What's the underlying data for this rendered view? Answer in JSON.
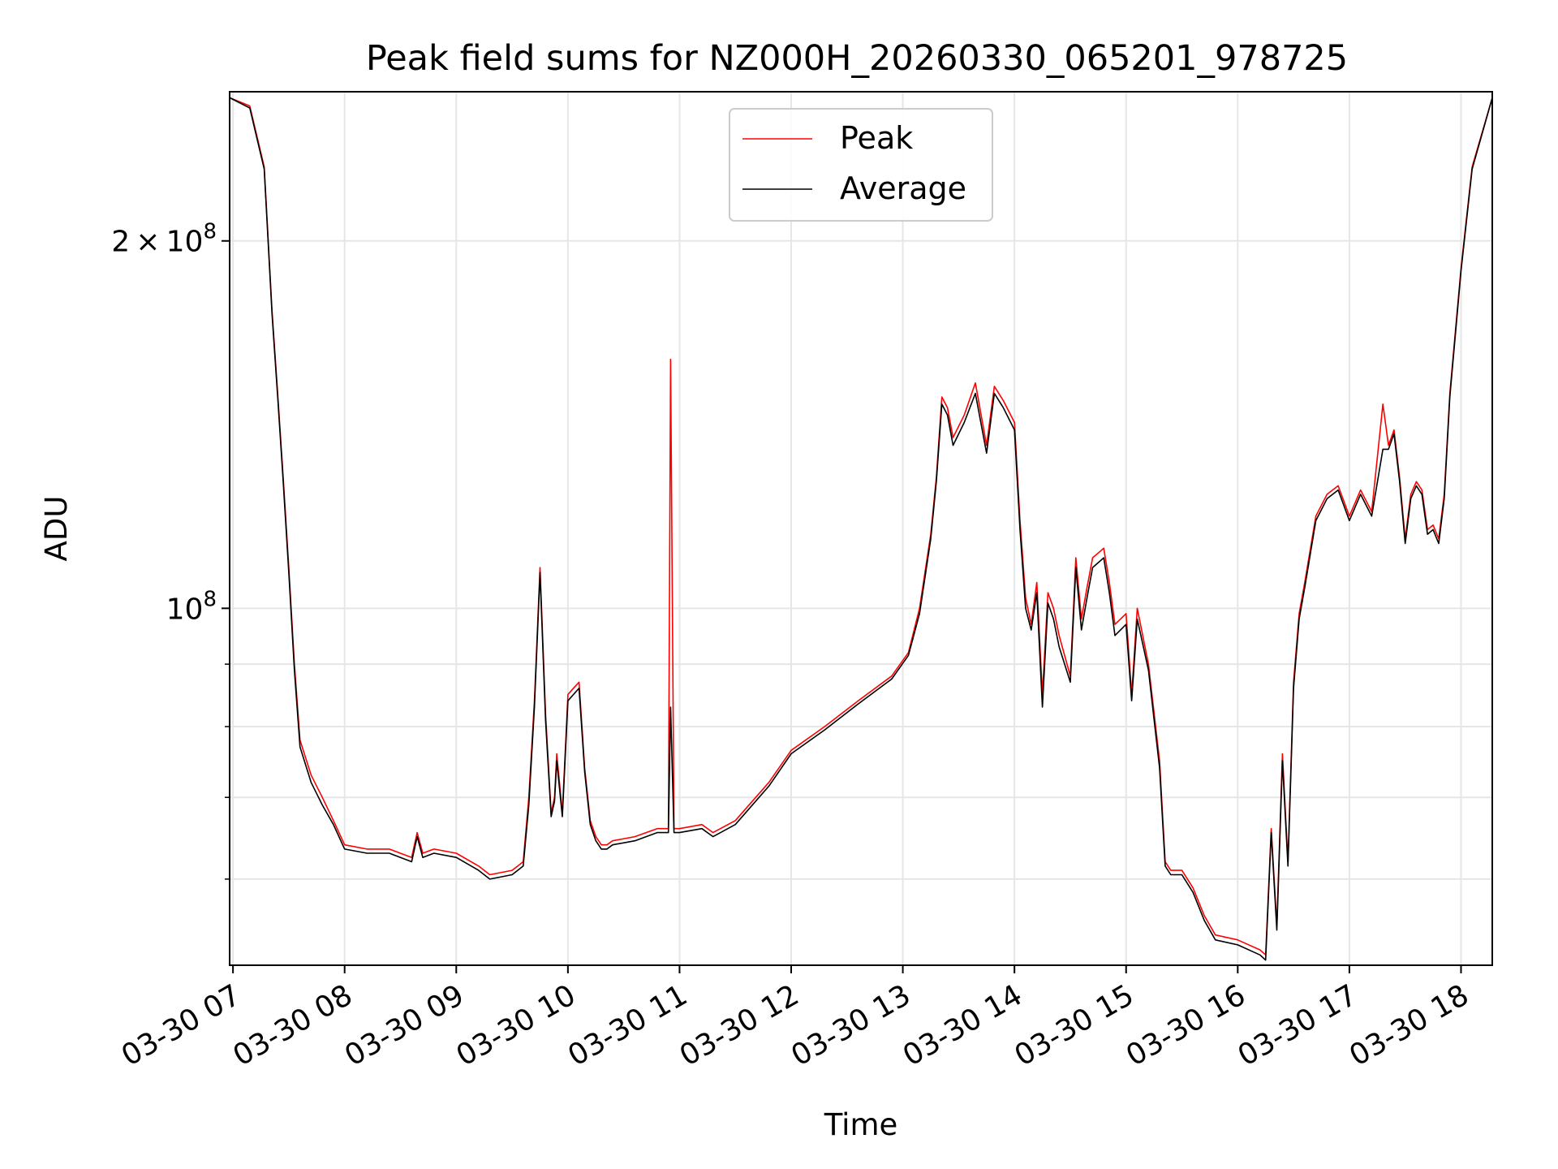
{
  "chart_data": {
    "type": "line",
    "title": "Peak field sums for NZ000H_20260330_065201_978725",
    "xlabel": "Time",
    "ylabel": "ADU",
    "yscale": "log",
    "ylim": [
      51000000,
      265000000
    ],
    "xlim_hours": [
      6.97,
      18.28
    ],
    "grid": true,
    "legend_position": "upper center",
    "x_ticks": [
      {
        "hour": 7,
        "label": "03-30 07"
      },
      {
        "hour": 8,
        "label": "03-30 08"
      },
      {
        "hour": 9,
        "label": "03-30 09"
      },
      {
        "hour": 10,
        "label": "03-30 10"
      },
      {
        "hour": 11,
        "label": "03-30 11"
      },
      {
        "hour": 12,
        "label": "03-30 12"
      },
      {
        "hour": 13,
        "label": "03-30 13"
      },
      {
        "hour": 14,
        "label": "03-30 14"
      },
      {
        "hour": 15,
        "label": "03-30 15"
      },
      {
        "hour": 16,
        "label": "03-30 16"
      },
      {
        "hour": 17,
        "label": "03-30 17"
      },
      {
        "hour": 18,
        "label": "03-30 18"
      }
    ],
    "y_major_ticks": [
      {
        "value": 100000000,
        "mantissa": "",
        "exponent": "8"
      },
      {
        "value": 200000000,
        "mantissa": "2",
        "exponent": "8"
      }
    ],
    "y_minor_ticks": [
      60000000,
      70000000,
      80000000,
      90000000
    ],
    "series": [
      {
        "name": "Peak",
        "color": "#ff0000",
        "x": [
          6.97,
          7.15,
          7.28,
          7.35,
          7.4,
          7.45,
          7.5,
          7.55,
          7.6,
          7.7,
          7.8,
          7.9,
          8.0,
          8.2,
          8.4,
          8.6,
          8.65,
          8.7,
          8.8,
          9.0,
          9.2,
          9.3,
          9.5,
          9.6,
          9.65,
          9.7,
          9.75,
          9.8,
          9.85,
          9.88,
          9.9,
          9.95,
          10.0,
          10.05,
          10.1,
          10.15,
          10.2,
          10.25,
          10.3,
          10.35,
          10.4,
          10.6,
          10.8,
          10.9,
          10.92,
          10.95,
          11.0,
          11.2,
          11.3,
          11.5,
          11.8,
          12.0,
          12.3,
          12.6,
          12.9,
          13.05,
          13.15,
          13.25,
          13.3,
          13.35,
          13.4,
          13.45,
          13.55,
          13.65,
          13.75,
          13.82,
          13.9,
          14.0,
          14.05,
          14.1,
          14.15,
          14.2,
          14.25,
          14.3,
          14.35,
          14.4,
          14.5,
          14.55,
          14.6,
          14.65,
          14.7,
          14.8,
          14.85,
          14.9,
          15.0,
          15.05,
          15.1,
          15.2,
          15.3,
          15.35,
          15.4,
          15.5,
          15.6,
          15.7,
          15.8,
          16.0,
          16.2,
          16.25,
          16.3,
          16.35,
          16.4,
          16.45,
          16.5,
          16.55,
          16.6,
          16.7,
          16.8,
          16.9,
          17.0,
          17.1,
          17.2,
          17.3,
          17.35,
          17.4,
          17.45,
          17.5,
          17.55,
          17.6,
          17.65,
          17.7,
          17.75,
          17.8,
          17.85,
          17.9,
          18.0,
          18.1,
          18.28
        ],
        "values": [
          262000000,
          258000000,
          230000000,
          175000000,
          150000000,
          128000000,
          108000000,
          90000000,
          78000000,
          73000000,
          70000000,
          67000000,
          64000000,
          63500000,
          63500000,
          62500000,
          65500000,
          63000000,
          63500000,
          63000000,
          61500000,
          60500000,
          61000000,
          62000000,
          70000000,
          84000000,
          108000000,
          82000000,
          68000000,
          70000000,
          76000000,
          68000000,
          85000000,
          86000000,
          87000000,
          74000000,
          67000000,
          65000000,
          64000000,
          64000000,
          64500000,
          65000000,
          66000000,
          66000000,
          160000000,
          66000000,
          66000000,
          66500000,
          65500000,
          67000000,
          72000000,
          76500000,
          80000000,
          84000000,
          88000000,
          92000000,
          100000000,
          115000000,
          128000000,
          149000000,
          146000000,
          138000000,
          144000000,
          153000000,
          136000000,
          152000000,
          148000000,
          142000000,
          118000000,
          102000000,
          97000000,
          105000000,
          85000000,
          103000000,
          100000000,
          95000000,
          88000000,
          110000000,
          98000000,
          104000000,
          110000000,
          112000000,
          105000000,
          97000000,
          99000000,
          85000000,
          100000000,
          90000000,
          75000000,
          62000000,
          61000000,
          61000000,
          59000000,
          56000000,
          54000000,
          53500000,
          52500000,
          52000000,
          66000000,
          55000000,
          76000000,
          62000000,
          87000000,
          99000000,
          105000000,
          119000000,
          124000000,
          126000000,
          119000000,
          125000000,
          120000000,
          147000000,
          136000000,
          140000000,
          128000000,
          114000000,
          124000000,
          127000000,
          125000000,
          116000000,
          117000000,
          114000000,
          124000000,
          150000000,
          190000000,
          230000000,
          262000000
        ]
      },
      {
        "name": "Average",
        "color": "#000000",
        "x": [
          6.97,
          7.15,
          7.28,
          7.35,
          7.4,
          7.45,
          7.5,
          7.55,
          7.6,
          7.7,
          7.8,
          7.9,
          8.0,
          8.2,
          8.4,
          8.6,
          8.65,
          8.7,
          8.8,
          9.0,
          9.2,
          9.3,
          9.5,
          9.6,
          9.65,
          9.7,
          9.75,
          9.8,
          9.85,
          9.88,
          9.9,
          9.95,
          10.0,
          10.05,
          10.1,
          10.15,
          10.2,
          10.25,
          10.3,
          10.35,
          10.4,
          10.6,
          10.8,
          10.9,
          10.92,
          10.95,
          11.0,
          11.2,
          11.3,
          11.5,
          11.8,
          12.0,
          12.3,
          12.6,
          12.9,
          13.05,
          13.15,
          13.25,
          13.3,
          13.35,
          13.4,
          13.45,
          13.55,
          13.65,
          13.75,
          13.82,
          13.9,
          14.0,
          14.05,
          14.1,
          14.15,
          14.2,
          14.25,
          14.3,
          14.35,
          14.4,
          14.5,
          14.55,
          14.6,
          14.65,
          14.7,
          14.8,
          14.85,
          14.9,
          15.0,
          15.05,
          15.1,
          15.2,
          15.3,
          15.35,
          15.4,
          15.5,
          15.6,
          15.7,
          15.8,
          16.0,
          16.2,
          16.25,
          16.3,
          16.35,
          16.4,
          16.45,
          16.5,
          16.55,
          16.6,
          16.7,
          16.8,
          16.9,
          17.0,
          17.1,
          17.2,
          17.3,
          17.35,
          17.4,
          17.45,
          17.5,
          17.55,
          17.6,
          17.65,
          17.7,
          17.75,
          17.8,
          17.85,
          17.9,
          18.0,
          18.1,
          18.28
        ],
        "values": [
          262000000,
          257000000,
          229000000,
          174000000,
          149000000,
          127000000,
          107000000,
          89000000,
          77000000,
          72000000,
          69000000,
          66500000,
          63500000,
          63000000,
          63000000,
          62000000,
          65000000,
          62500000,
          63000000,
          62500000,
          61000000,
          60000000,
          60500000,
          61500000,
          69000000,
          83000000,
          107000000,
          81000000,
          67500000,
          69500000,
          75000000,
          67500000,
          84000000,
          85000000,
          86000000,
          73500000,
          66500000,
          64500000,
          63500000,
          63500000,
          64000000,
          64500000,
          65500000,
          65500000,
          83000000,
          65500000,
          65500000,
          66000000,
          65000000,
          66500000,
          71500000,
          76000000,
          79500000,
          83500000,
          87500000,
          91500000,
          99000000,
          114000000,
          127000000,
          147000000,
          144000000,
          136000000,
          142000000,
          150000000,
          134000000,
          150000000,
          146000000,
          140000000,
          116000000,
          100000000,
          96000000,
          103000000,
          83000000,
          101000000,
          98000000,
          93000000,
          87000000,
          108000000,
          96000000,
          102000000,
          108000000,
          110000000,
          103000000,
          95000000,
          97000000,
          84000000,
          98000000,
          89000000,
          74000000,
          61500000,
          60500000,
          60500000,
          58500000,
          55500000,
          53500000,
          53000000,
          52000000,
          51500000,
          65500000,
          54500000,
          75000000,
          61500000,
          86000000,
          98000000,
          104000000,
          118000000,
          123000000,
          125000000,
          118000000,
          124000000,
          119000000,
          135000000,
          135000000,
          139000000,
          127000000,
          113000000,
          123000000,
          126000000,
          124000000,
          115000000,
          116000000,
          113000000,
          123000000,
          149000000,
          189000000,
          229000000,
          262000000
        ]
      }
    ]
  }
}
